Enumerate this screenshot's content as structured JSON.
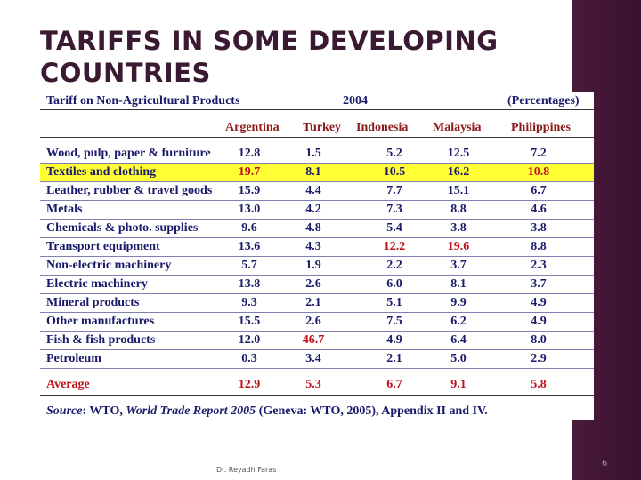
{
  "slide": {
    "title": "TARIFFS  IN SOME DEVELOPING COUNTRIES",
    "footer": "Dr. Reyadh Faras",
    "page_number": "6"
  },
  "table": {
    "header_left": "Tariff on Non-Agricultural Products",
    "header_year": "2004",
    "header_right": "(Percentages)",
    "columns": [
      "Argentina",
      "Turkey",
      "Indonesia",
      "Malaysia",
      "Philippines"
    ],
    "rows": [
      {
        "label": "Wood, pulp, paper & furniture",
        "values": [
          "12.8",
          "1.5",
          "5.2",
          "12.5",
          "7.2"
        ],
        "highlight": false,
        "red": []
      },
      {
        "label": "Textiles and clothing",
        "values": [
          "19.7",
          "8.1",
          "10.5",
          "16.2",
          "10.8"
        ],
        "highlight": true,
        "red": [
          0,
          4
        ]
      },
      {
        "label": "Leather, rubber & travel goods",
        "values": [
          "15.9",
          "4.4",
          "7.7",
          "15.1",
          "6.7"
        ],
        "highlight": false,
        "red": []
      },
      {
        "label": "Metals",
        "values": [
          "13.0",
          "4.2",
          "7.3",
          "8.8",
          "4.6"
        ],
        "highlight": false,
        "red": []
      },
      {
        "label": "Chemicals & photo. supplies",
        "values": [
          "9.6",
          "4.8",
          "5.4",
          "3.8",
          "3.8"
        ],
        "highlight": false,
        "red": []
      },
      {
        "label": "Transport equipment",
        "values": [
          "13.6",
          "4.3",
          "12.2",
          "19.6",
          "8.8"
        ],
        "highlight": false,
        "red": [
          2,
          3
        ]
      },
      {
        "label": "Non-electric machinery",
        "values": [
          "5.7",
          "1.9",
          "2.2",
          "3.7",
          "2.3"
        ],
        "highlight": false,
        "red": []
      },
      {
        "label": "Electric  machinery",
        "values": [
          "13.8",
          "2.6",
          "6.0",
          "8.1",
          "3.7"
        ],
        "highlight": false,
        "red": []
      },
      {
        "label": "Mineral products",
        "values": [
          "9.3",
          "2.1",
          "5.1",
          "9.9",
          "4.9"
        ],
        "highlight": false,
        "red": []
      },
      {
        "label": "Other manufactures",
        "values": [
          "15.5",
          "2.6",
          "7.5",
          "6.2",
          "4.9"
        ],
        "highlight": false,
        "red": []
      },
      {
        "label": "Fish & fish products",
        "values": [
          "12.0",
          "46.7",
          "4.9",
          "6.4",
          "8.0"
        ],
        "highlight": false,
        "red": [
          1
        ]
      },
      {
        "label": "Petroleum",
        "values": [
          "0.3",
          "3.4",
          "2.1",
          "5.0",
          "2.9"
        ],
        "highlight": false,
        "red": []
      }
    ],
    "average": {
      "label": "Average",
      "values": [
        "12.9",
        "5.3",
        "6.7",
        "9.1",
        "5.8"
      ]
    },
    "source_lead": "Source",
    "source_text": ": WTO, ",
    "source_title": "World Trade Report 2005",
    "source_tail": " (Geneva: WTO, 2005), Appendix II and IV."
  },
  "colors": {
    "highlight": "#ffff33",
    "header_red": "#8b1a1a",
    "value_red": "#c0101a",
    "text_navy": "#1a1a6a",
    "band": "#4a1a3a"
  }
}
